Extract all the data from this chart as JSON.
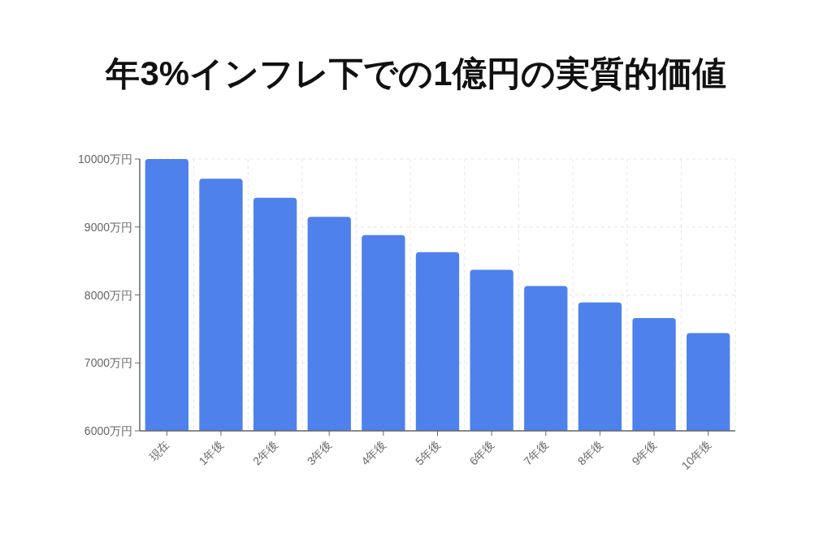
{
  "chart_data": {
    "type": "bar",
    "title": "年3%インフレ下での1億円の実質的価値",
    "categories": [
      "現在",
      "1年後",
      "2年後",
      "3年後",
      "4年後",
      "5年後",
      "6年後",
      "7年後",
      "8年後",
      "9年後",
      "10年後"
    ],
    "values": [
      10000,
      9710,
      9430,
      9150,
      8880,
      8630,
      8370,
      8130,
      7890,
      7660,
      7440
    ],
    "color": "#4f81ec",
    "ylim": [
      6000,
      10000
    ],
    "yticks": [
      {
        "value": 6000,
        "label": "6000万円"
      },
      {
        "value": 7000,
        "label": "7000万円"
      },
      {
        "value": 8000,
        "label": "8000万円"
      },
      {
        "value": 9000,
        "label": "9000万円"
      },
      {
        "value": 10000,
        "label": "10000万円"
      }
    ],
    "grid": true
  }
}
